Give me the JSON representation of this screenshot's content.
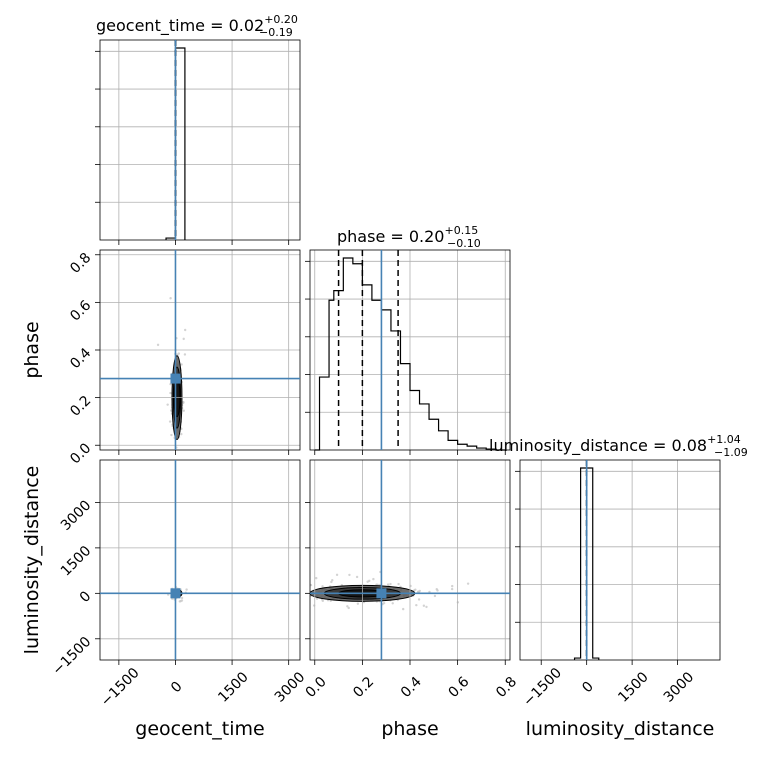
{
  "chart_data": {
    "type": "corner",
    "parameters": [
      "geocent_time",
      "phase",
      "luminosity_distance"
    ],
    "axis_labels": {
      "geocent_time": "geocent_time",
      "phase": "phase",
      "luminosity_distance": "luminosity_distance"
    },
    "titles": {
      "geocent_time": {
        "prefix": "geocent_time = 0.02",
        "plus": "+0.20",
        "minus": "−0.19"
      },
      "phase": {
        "prefix": "phase = 0.20",
        "plus": "+0.15",
        "minus": "−0.10"
      },
      "luminosity_distance": {
        "prefix": "luminosity_distance = 0.08",
        "plus": "+1.04",
        "minus": "−1.09"
      }
    },
    "truths": {
      "geocent_time": 0,
      "phase": 0.28,
      "luminosity_distance": 0
    },
    "quantiles": {
      "geocent_time": [
        -0.17,
        0.02,
        0.22
      ],
      "phase": [
        0.1,
        0.2,
        0.35
      ],
      "luminosity_distance": [
        -1.01,
        0.08,
        1.12
      ]
    },
    "ranges": {
      "geocent_time": [
        -2000,
        3300
      ],
      "phase": [
        -0.02,
        0.82
      ],
      "luminosity_distance": [
        -2200,
        4400
      ]
    },
    "ticks": {
      "geocent_time": {
        "values": [
          -1500,
          0,
          1500,
          3000
        ],
        "labels": [
          "−1500",
          "0",
          "1500",
          "3000"
        ]
      },
      "phase": {
        "values": [
          0.0,
          0.2,
          0.4,
          0.6,
          0.8
        ],
        "labels": [
          "0.0",
          "0.2",
          "0.4",
          "0.6",
          "0.8"
        ]
      },
      "luminosity_distance": {
        "values": [
          -1500,
          0,
          1500,
          3000
        ],
        "labels": [
          "−1500",
          "0",
          "1500",
          "3000"
        ]
      }
    },
    "histograms": {
      "geocent_time": {
        "edges": [
          -250,
          0,
          250
        ],
        "counts": [
          0.01,
          1.0
        ]
      },
      "phase": {
        "edges": [
          0.0,
          0.02,
          0.04,
          0.06,
          0.08,
          0.1,
          0.12,
          0.14,
          0.16,
          0.18,
          0.2,
          0.22,
          0.24,
          0.26,
          0.28,
          0.3,
          0.32,
          0.34,
          0.36,
          0.38,
          0.4,
          0.42,
          0.44,
          0.46,
          0.48,
          0.5,
          0.52,
          0.54,
          0.56,
          0.58,
          0.6,
          0.62,
          0.64,
          0.66,
          0.68,
          0.7,
          0.72,
          0.74,
          0.76,
          0.78,
          0.8
        ],
        "counts": [
          0.0,
          0.38,
          0.38,
          0.78,
          0.83,
          0.83,
          1.0,
          1.0,
          0.97,
          0.97,
          0.86,
          0.86,
          0.78,
          0.78,
          0.73,
          0.73,
          0.62,
          0.62,
          0.45,
          0.45,
          0.31,
          0.31,
          0.24,
          0.24,
          0.16,
          0.16,
          0.1,
          0.1,
          0.05,
          0.05,
          0.03,
          0.03,
          0.02,
          0.02,
          0.01,
          0.01,
          0.005,
          0.005,
          0.0,
          0.0
        ]
      },
      "luminosity_distance": {
        "edges": [
          -400,
          -200,
          0,
          200,
          400
        ],
        "counts": [
          0.01,
          1.0,
          1.0,
          0.01
        ]
      }
    },
    "grid": true,
    "legend": "none"
  }
}
